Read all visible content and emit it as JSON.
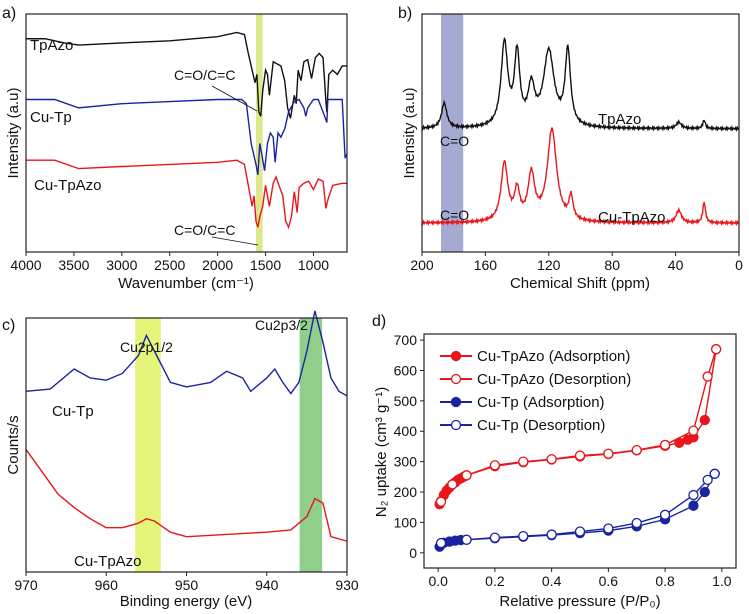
{
  "chart_data": [
    {
      "panel": "a)",
      "type": "line",
      "xlabel": "Wavenumber (cm⁻¹)",
      "ylabel": "Intensity (a.u)",
      "xlim": [
        4000,
        650
      ],
      "ylim": [
        0,
        100
      ],
      "xticks": [
        4000,
        3500,
        3000,
        2500,
        2000,
        1500,
        1000
      ],
      "band": {
        "range": [
          1600,
          1530
        ],
        "color": "#dde88a"
      },
      "annotations": [
        "C=O/C=C",
        "C=O/C=C"
      ],
      "series": [
        {
          "name": "TpAzo",
          "color": "#111111",
          "points": [
            [
              4000,
              95
            ],
            [
              3800,
              95
            ],
            [
              3600,
              93
            ],
            [
              3450,
              92
            ],
            [
              3000,
              93
            ],
            [
              2500,
              94
            ],
            [
              2000,
              96
            ],
            [
              1800,
              98
            ],
            [
              1720,
              97
            ],
            [
              1680,
              88
            ],
            [
              1640,
              80
            ],
            [
              1610,
              74
            ],
            [
              1590,
              78
            ],
            [
              1570,
              60
            ],
            [
              1550,
              58
            ],
            [
              1530,
              70
            ],
            [
              1500,
              80
            ],
            [
              1480,
              78
            ],
            [
              1460,
              68
            ],
            [
              1420,
              84
            ],
            [
              1380,
              83
            ],
            [
              1340,
              82
            ],
            [
              1300,
              75
            ],
            [
              1270,
              62
            ],
            [
              1240,
              57
            ],
            [
              1200,
              68
            ],
            [
              1180,
              64
            ],
            [
              1160,
              80
            ],
            [
              1130,
              75
            ],
            [
              1100,
              84
            ],
            [
              1060,
              85
            ],
            [
              1020,
              76
            ],
            [
              980,
              86
            ],
            [
              940,
              88
            ],
            [
              900,
              86
            ],
            [
              870,
              65
            ],
            [
              860,
              60
            ],
            [
              840,
              78
            ],
            [
              800,
              80
            ],
            [
              750,
              78
            ],
            [
              700,
              82
            ],
            [
              650,
              82
            ]
          ]
        },
        {
          "name": "Cu-Tp",
          "color": "#1a23a0",
          "points": [
            [
              4000,
              66
            ],
            [
              3700,
              66
            ],
            [
              3450,
              62
            ],
            [
              3000,
              64
            ],
            [
              2500,
              65
            ],
            [
              2000,
              66
            ],
            [
              1750,
              66
            ],
            [
              1700,
              64
            ],
            [
              1650,
              45
            ],
            [
              1600,
              35
            ],
            [
              1580,
              30
            ],
            [
              1560,
              45
            ],
            [
              1540,
              40
            ],
            [
              1510,
              32
            ],
            [
              1480,
              45
            ],
            [
              1450,
              50
            ],
            [
              1420,
              48
            ],
            [
              1400,
              36
            ],
            [
              1370,
              50
            ],
            [
              1340,
              48
            ],
            [
              1300,
              52
            ],
            [
              1260,
              60
            ],
            [
              1200,
              65
            ],
            [
              1150,
              66
            ],
            [
              1100,
              62
            ],
            [
              1080,
              58
            ],
            [
              1060,
              62
            ],
            [
              1000,
              66
            ],
            [
              950,
              66
            ],
            [
              900,
              60
            ],
            [
              860,
              55
            ],
            [
              850,
              66
            ],
            [
              800,
              66
            ],
            [
              700,
              66
            ],
            [
              670,
              38
            ],
            [
              650,
              40
            ]
          ]
        },
        {
          "name": "Cu-TpAzo",
          "color": "#e8161b",
          "points": [
            [
              4000,
              37
            ],
            [
              3700,
              37
            ],
            [
              3450,
              33
            ],
            [
              3000,
              34
            ],
            [
              2500,
              35
            ],
            [
              2000,
              36
            ],
            [
              1800,
              37
            ],
            [
              1720,
              35
            ],
            [
              1680,
              25
            ],
            [
              1640,
              15
            ],
            [
              1620,
              20
            ],
            [
              1600,
              8
            ],
            [
              1580,
              5
            ],
            [
              1560,
              10
            ],
            [
              1530,
              15
            ],
            [
              1500,
              25
            ],
            [
              1480,
              20
            ],
            [
              1460,
              15
            ],
            [
              1420,
              26
            ],
            [
              1390,
              29
            ],
            [
              1360,
              25
            ],
            [
              1320,
              20
            ],
            [
              1290,
              8
            ],
            [
              1260,
              5
            ],
            [
              1230,
              10
            ],
            [
              1200,
              22
            ],
            [
              1170,
              12
            ],
            [
              1150,
              24
            ],
            [
              1100,
              26
            ],
            [
              1050,
              27
            ],
            [
              1000,
              23
            ],
            [
              950,
              28
            ],
            [
              900,
              27
            ],
            [
              870,
              14
            ],
            [
              850,
              18
            ],
            [
              800,
              25
            ],
            [
              700,
              26
            ],
            [
              650,
              26
            ]
          ]
        }
      ]
    },
    {
      "panel": "b)",
      "type": "line",
      "xlabel": "Chemical Shift (ppm)",
      "ylabel": "Intensity (a.u)",
      "xlim": [
        200,
        0
      ],
      "ylim": [
        0,
        100
      ],
      "xticks": [
        200,
        160,
        120,
        80,
        40,
        0
      ],
      "band": {
        "range": [
          188,
          174
        ],
        "color": "#8f95c8"
      },
      "annotations": [
        "C=O",
        "C=O"
      ],
      "series": [
        {
          "name": "TpAzo",
          "color": "#111111",
          "baseline": 52,
          "peaks": [
            [
              186,
              12,
              2
            ],
            [
              148,
              40,
              2.5
            ],
            [
              140,
              34,
              2
            ],
            [
              131,
              18,
              2.5
            ],
            [
              120,
              36,
              4
            ],
            [
              108,
              36,
              2
            ],
            [
              38,
              3,
              2
            ],
            [
              22,
              4,
              1
            ]
          ]
        },
        {
          "name": "Cu-TpAzo",
          "color": "#e8161b",
          "baseline": 7,
          "peaks": [
            [
              148,
              28,
              2.5
            ],
            [
              140,
              14,
              2
            ],
            [
              131,
              22,
              2.5
            ],
            [
              118,
              44,
              3.5
            ],
            [
              106,
              11,
              1.5
            ],
            [
              38,
              6,
              2
            ],
            [
              22,
              10,
              1
            ]
          ]
        }
      ]
    },
    {
      "panel": "c)",
      "type": "line",
      "xlabel": "Binding energy (eV)",
      "ylabel": "Counts/s",
      "xlim": [
        970,
        930
      ],
      "ylim": [
        0,
        100
      ],
      "xticks": [
        970,
        960,
        950,
        940,
        930
      ],
      "bands": [
        {
          "label": "Cu2p1/2",
          "range": [
            956.4,
            953.2
          ],
          "color": "#e4f57a"
        },
        {
          "label": "Cu2p3/2",
          "range": [
            935.9,
            933.1
          ],
          "color": "#8fcf8a"
        }
      ],
      "series": [
        {
          "name": "Cu-Tp",
          "color": "#1a23a0",
          "points": [
            [
              970,
              74
            ],
            [
              967,
              75
            ],
            [
              964,
              84
            ],
            [
              962,
              80
            ],
            [
              960,
              79
            ],
            [
              958,
              82
            ],
            [
              956,
              90
            ],
            [
              955,
              99
            ],
            [
              954,
              92
            ],
            [
              952,
              78
            ],
            [
              950,
              76
            ],
            [
              947,
              78
            ],
            [
              945,
              83
            ],
            [
              943,
              80
            ],
            [
              942,
              74
            ],
            [
              940,
              80
            ],
            [
              939,
              84
            ],
            [
              938,
              78
            ],
            [
              937,
              73
            ],
            [
              936,
              78
            ],
            [
              935,
              92
            ],
            [
              934,
              110
            ],
            [
              933,
              96
            ],
            [
              932,
              80
            ],
            [
              931,
              74
            ],
            [
              930,
              72
            ]
          ]
        },
        {
          "name": "Cu-TpAzo",
          "color": "#e8161b",
          "points": [
            [
              970,
              48
            ],
            [
              968,
              38
            ],
            [
              966,
              28
            ],
            [
              964,
              22
            ],
            [
              962,
              17
            ],
            [
              960,
              13
            ],
            [
              958,
              13
            ],
            [
              956,
              15
            ],
            [
              955,
              17
            ],
            [
              954,
              16
            ],
            [
              952,
              11
            ],
            [
              950,
              9
            ],
            [
              945,
              10
            ],
            [
              940,
              11
            ],
            [
              937,
              12
            ],
            [
              935,
              18
            ],
            [
              934,
              26
            ],
            [
              933,
              24
            ],
            [
              932,
              9
            ],
            [
              930,
              7
            ]
          ]
        }
      ]
    },
    {
      "panel": "d)",
      "type": "scatter",
      "xlabel": "Relative pressure (P/P₀)",
      "ylabel": "N₂ uptake (cm³ g⁻¹)",
      "xlim": [
        -0.05,
        1.05
      ],
      "ylim": [
        -50,
        720
      ],
      "xticks": [
        "0.0",
        "0.2",
        "0.4",
        "0.6",
        "0.8",
        "1.0"
      ],
      "yticks": [
        "0",
        "100",
        "200",
        "300",
        "400",
        "500",
        "600",
        "700"
      ],
      "legend": "top-left",
      "series": [
        {
          "name": "Cu-TpAzo (Adsorption)",
          "color": "#e8161b",
          "filled": true,
          "points": [
            [
              0.005,
              160
            ],
            [
              0.01,
              170
            ],
            [
              0.02,
              190
            ],
            [
              0.03,
              205
            ],
            [
              0.04,
              215
            ],
            [
              0.05,
              225
            ],
            [
              0.06,
              232
            ],
            [
              0.07,
              240
            ],
            [
              0.08,
              245
            ],
            [
              0.09,
              250
            ],
            [
              0.1,
              255
            ],
            [
              0.2,
              285
            ],
            [
              0.3,
              298
            ],
            [
              0.4,
              307
            ],
            [
              0.5,
              317
            ],
            [
              0.6,
              325
            ],
            [
              0.7,
              337
            ],
            [
              0.8,
              352
            ],
            [
              0.85,
              362
            ],
            [
              0.88,
              372
            ],
            [
              0.9,
              380
            ],
            [
              0.94,
              437
            ],
            [
              0.98,
              670
            ]
          ]
        },
        {
          "name": "Cu-TpAzo (Desorption)",
          "color": "#e8161b",
          "filled": false,
          "points": [
            [
              0.98,
              670
            ],
            [
              0.95,
              580
            ],
            [
              0.9,
              402
            ],
            [
              0.8,
              355
            ],
            [
              0.7,
              338
            ],
            [
              0.6,
              326
            ],
            [
              0.5,
              320
            ],
            [
              0.4,
              308
            ],
            [
              0.3,
              300
            ],
            [
              0.2,
              288
            ],
            [
              0.1,
              255
            ],
            [
              0.05,
              225
            ],
            [
              0.01,
              168
            ]
          ]
        },
        {
          "name": "Cu-Tp (Adsorption)",
          "color": "#1a23a0",
          "filled": true,
          "points": [
            [
              0.005,
              20
            ],
            [
              0.01,
              28
            ],
            [
              0.02,
              33
            ],
            [
              0.04,
              37
            ],
            [
              0.06,
              40
            ],
            [
              0.08,
              42
            ],
            [
              0.1,
              43
            ],
            [
              0.2,
              48
            ],
            [
              0.3,
              53
            ],
            [
              0.4,
              58
            ],
            [
              0.5,
              65
            ],
            [
              0.6,
              73
            ],
            [
              0.7,
              87
            ],
            [
              0.8,
              110
            ],
            [
              0.9,
              155
            ],
            [
              0.94,
              200
            ],
            [
              0.975,
              260
            ]
          ]
        },
        {
          "name": "Cu-Tp (Desorption)",
          "color": "#1a23a0",
          "filled": false,
          "points": [
            [
              0.975,
              260
            ],
            [
              0.95,
              240
            ],
            [
              0.9,
              190
            ],
            [
              0.8,
              125
            ],
            [
              0.7,
              98
            ],
            [
              0.6,
              80
            ],
            [
              0.5,
              70
            ],
            [
              0.4,
              60
            ],
            [
              0.3,
              55
            ],
            [
              0.2,
              50
            ],
            [
              0.1,
              43
            ],
            [
              0.01,
              32
            ]
          ]
        }
      ]
    }
  ]
}
